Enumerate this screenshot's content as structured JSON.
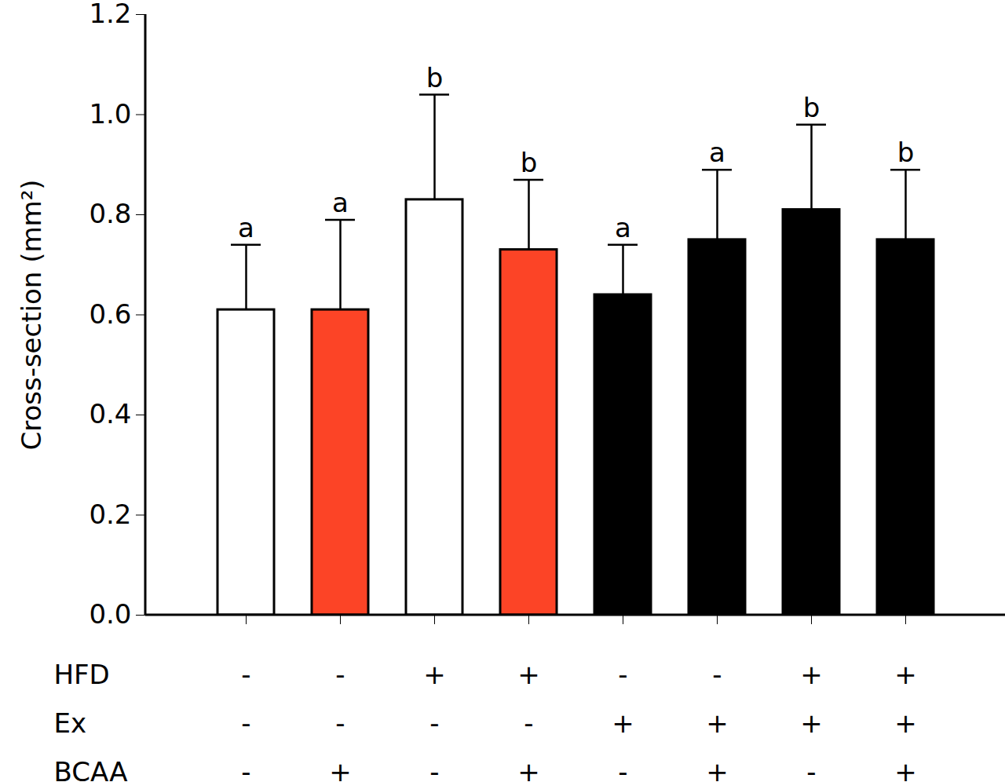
{
  "chart_data": {
    "type": "bar",
    "ylabel": "Cross-section (mm²)",
    "categories": [
      null,
      null,
      null,
      null,
      null,
      null,
      null,
      null
    ],
    "values": [
      0.61,
      0.61,
      0.83,
      0.73,
      0.64,
      0.75,
      0.81,
      0.75
    ],
    "errors": [
      0.13,
      0.18,
      0.21,
      0.14,
      0.1,
      0.14,
      0.17,
      0.14
    ],
    "letters": [
      "a",
      "a",
      "b",
      "b",
      "a",
      "a",
      "b",
      "b"
    ],
    "colors": [
      "#ffffff",
      "#fc4426",
      "#ffffff",
      "#fc4426",
      "#ffffff",
      "#fc4426",
      "#ffffff",
      "#fc4426"
    ],
    "factors": [
      {
        "name": "HFD",
        "levels": [
          "-",
          "-",
          "+",
          "+",
          "-",
          "-",
          "+",
          "+"
        ]
      },
      {
        "name": "Ex",
        "levels": [
          "-",
          "-",
          "-",
          "-",
          "+",
          "+",
          "+",
          "+"
        ]
      },
      {
        "name": "BCAA",
        "levels": [
          "-",
          "+",
          "-",
          "+",
          "-",
          "+",
          "-",
          "+"
        ]
      }
    ],
    "ylim": [
      0,
      1.2
    ],
    "yticks": [
      {
        "value": 0,
        "label": "0.0"
      },
      0.2,
      0.4,
      0.6,
      0.8,
      {
        "value": 1,
        "label": "1.0"
      },
      1.2
    ]
  }
}
